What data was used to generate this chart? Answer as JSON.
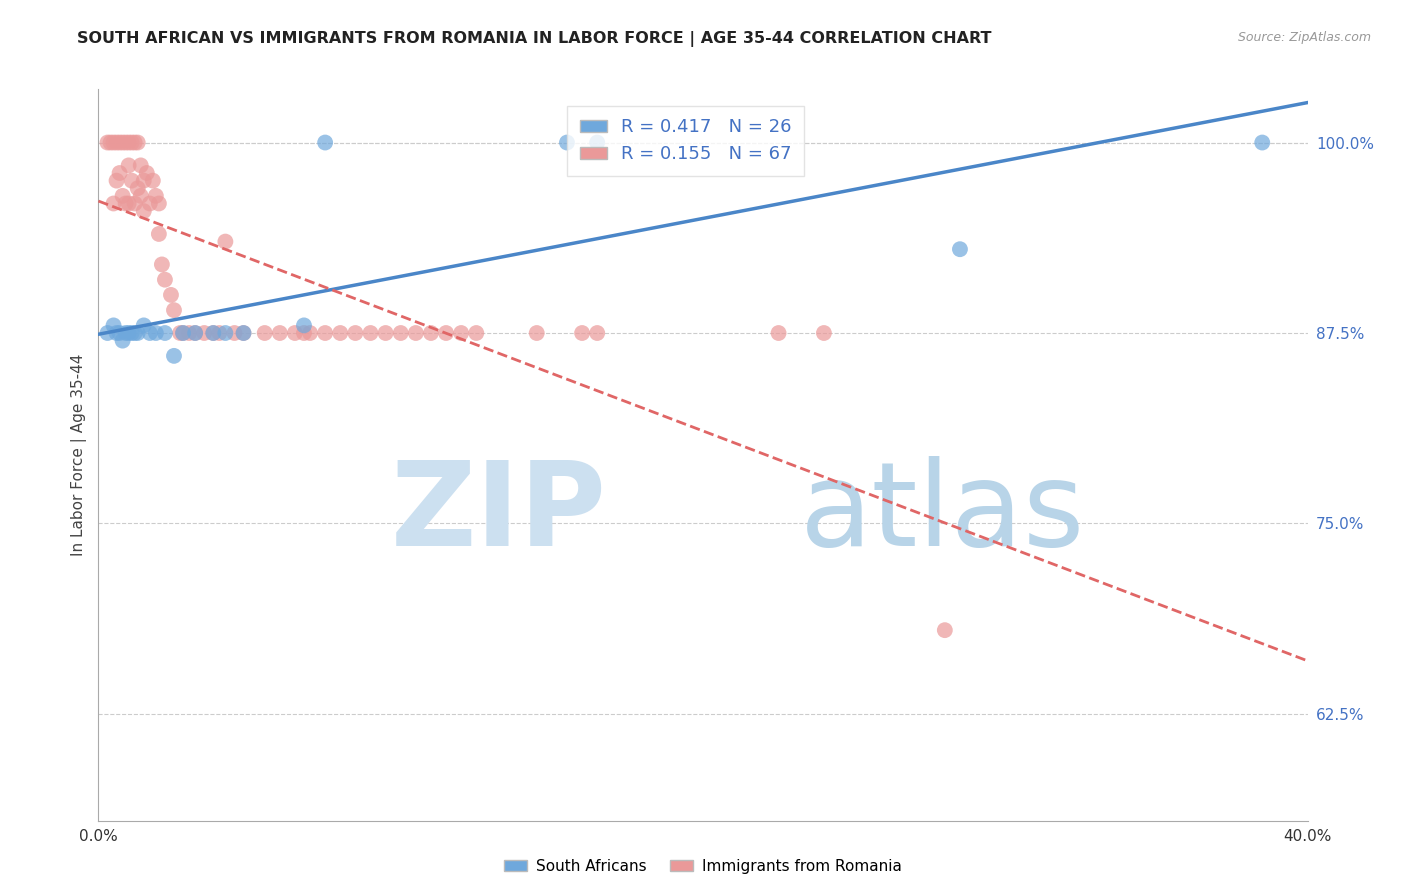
{
  "title": "SOUTH AFRICAN VS IMMIGRANTS FROM ROMANIA IN LABOR FORCE | AGE 35-44 CORRELATION CHART",
  "source": "Source: ZipAtlas.com",
  "ylabel": "In Labor Force | Age 35-44",
  "xlim": [
    0.0,
    0.4
  ],
  "ylim": [
    0.555,
    1.035
  ],
  "yticks": [
    0.625,
    0.75,
    0.875,
    1.0
  ],
  "ytick_labels": [
    "62.5%",
    "75.0%",
    "87.5%",
    "100.0%"
  ],
  "xticks": [
    0.0,
    0.05,
    0.1,
    0.15,
    0.2,
    0.25,
    0.3,
    0.35,
    0.4
  ],
  "xtick_labels": [
    "0.0%",
    "",
    "",
    "",
    "",
    "",
    "",
    "",
    "40.0%"
  ],
  "blue_R": 0.417,
  "blue_N": 26,
  "pink_R": 0.155,
  "pink_N": 67,
  "blue_color": "#6fa8dc",
  "pink_color": "#ea9999",
  "blue_line_color": "#4a86c8",
  "pink_line_color": "#e06666",
  "grid_color": "#cccccc",
  "background_color": "#ffffff",
  "watermark_zip_color": "#cce0f0",
  "watermark_atlas_color": "#b8d4e8",
  "legend_text_color": "#4472c4",
  "blue_scatter_x": [
    0.003,
    0.005,
    0.006,
    0.007,
    0.008,
    0.009,
    0.01,
    0.011,
    0.012,
    0.013,
    0.015,
    0.017,
    0.019,
    0.022,
    0.025,
    0.028,
    0.032,
    0.038,
    0.042,
    0.048,
    0.068,
    0.075,
    0.155,
    0.165,
    0.285,
    0.385
  ],
  "blue_scatter_y": [
    0.875,
    0.88,
    0.875,
    0.875,
    0.87,
    0.875,
    0.875,
    0.875,
    0.875,
    0.875,
    0.88,
    0.875,
    0.875,
    0.875,
    0.86,
    0.875,
    0.875,
    0.875,
    0.875,
    0.875,
    0.88,
    1.0,
    1.0,
    1.0,
    0.93,
    1.0
  ],
  "pink_scatter_x": [
    0.003,
    0.004,
    0.005,
    0.005,
    0.006,
    0.006,
    0.007,
    0.007,
    0.008,
    0.008,
    0.009,
    0.009,
    0.01,
    0.01,
    0.01,
    0.011,
    0.011,
    0.012,
    0.012,
    0.013,
    0.013,
    0.014,
    0.014,
    0.015,
    0.015,
    0.016,
    0.017,
    0.018,
    0.019,
    0.02,
    0.02,
    0.021,
    0.022,
    0.024,
    0.025,
    0.027,
    0.028,
    0.03,
    0.032,
    0.035,
    0.038,
    0.04,
    0.042,
    0.045,
    0.048,
    0.055,
    0.06,
    0.065,
    0.068,
    0.07,
    0.075,
    0.08,
    0.085,
    0.09,
    0.095,
    0.1,
    0.105,
    0.11,
    0.115,
    0.12,
    0.125,
    0.145,
    0.16,
    0.165,
    0.225,
    0.24,
    0.28
  ],
  "pink_scatter_y": [
    1.0,
    1.0,
    1.0,
    0.96,
    1.0,
    0.975,
    1.0,
    0.98,
    1.0,
    0.965,
    1.0,
    0.96,
    1.0,
    0.985,
    0.96,
    1.0,
    0.975,
    1.0,
    0.96,
    1.0,
    0.97,
    0.985,
    0.965,
    0.975,
    0.955,
    0.98,
    0.96,
    0.975,
    0.965,
    0.96,
    0.94,
    0.92,
    0.91,
    0.9,
    0.89,
    0.875,
    0.875,
    0.875,
    0.875,
    0.875,
    0.875,
    0.875,
    0.935,
    0.875,
    0.875,
    0.875,
    0.875,
    0.875,
    0.875,
    0.875,
    0.875,
    0.875,
    0.875,
    0.875,
    0.875,
    0.875,
    0.875,
    0.875,
    0.875,
    0.875,
    0.875,
    0.875,
    0.875,
    0.875,
    0.875,
    0.875,
    0.68
  ]
}
